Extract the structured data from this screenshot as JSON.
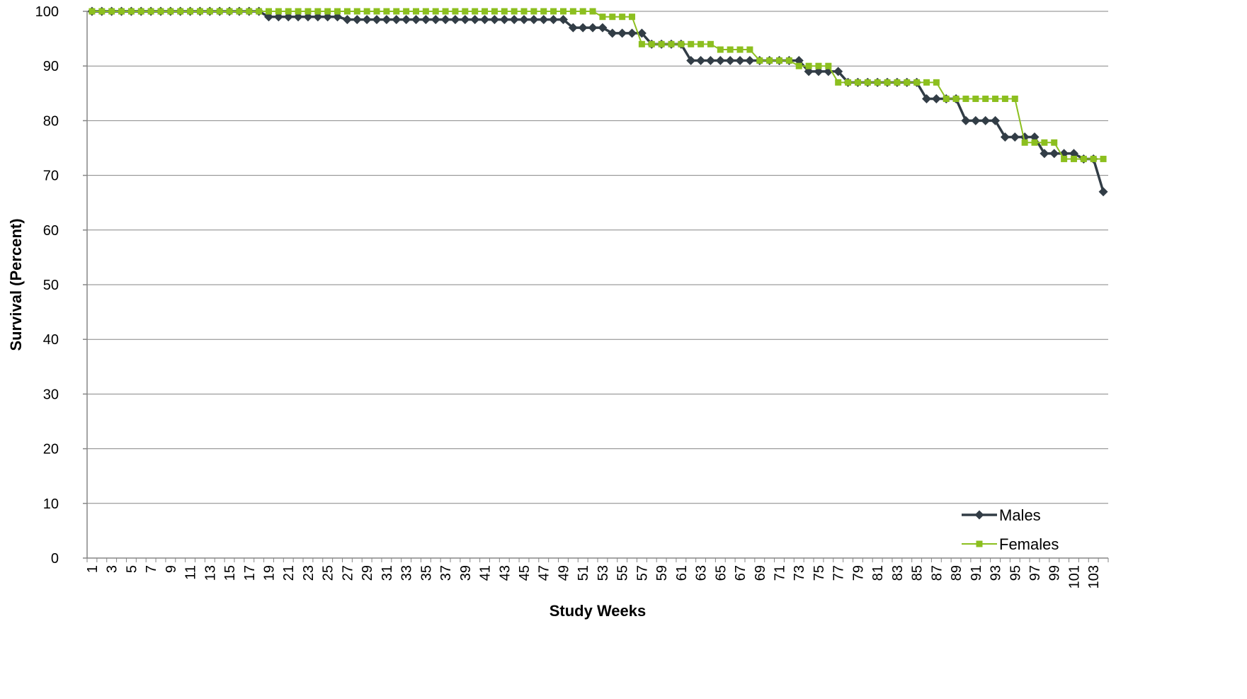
{
  "chart_data": {
    "type": "line",
    "xlabel": "Study Weeks",
    "ylabel": "Survival (Percent)",
    "ylim": [
      0,
      100
    ],
    "yticks": [
      0,
      10,
      20,
      30,
      40,
      50,
      60,
      70,
      80,
      90,
      100
    ],
    "x_tick_step": 2,
    "grid": "horizontal",
    "legend_position": "bottom-right",
    "x": [
      1,
      2,
      3,
      4,
      5,
      6,
      7,
      8,
      9,
      10,
      11,
      12,
      13,
      14,
      15,
      16,
      17,
      18,
      19,
      20,
      21,
      22,
      23,
      24,
      25,
      26,
      27,
      28,
      29,
      30,
      31,
      32,
      33,
      34,
      35,
      36,
      37,
      38,
      39,
      40,
      41,
      42,
      43,
      44,
      45,
      46,
      47,
      48,
      49,
      50,
      51,
      52,
      53,
      54,
      55,
      56,
      57,
      58,
      59,
      60,
      61,
      62,
      63,
      64,
      65,
      66,
      67,
      68,
      69,
      70,
      71,
      72,
      73,
      74,
      75,
      76,
      77,
      78,
      79,
      80,
      81,
      82,
      83,
      84,
      85,
      86,
      87,
      88,
      89,
      90,
      91,
      92,
      93,
      94,
      95,
      96,
      97,
      98,
      99,
      100,
      101,
      102,
      103,
      104
    ],
    "series": [
      {
        "name": "Males",
        "color": "#323d46",
        "marker": "diamond",
        "values": [
          100,
          100,
          100,
          100,
          100,
          100,
          100,
          100,
          100,
          100,
          100,
          100,
          100,
          100,
          100,
          100,
          100,
          100,
          99,
          99,
          99,
          99,
          99,
          99,
          99,
          99,
          98.5,
          98.5,
          98.5,
          98.5,
          98.5,
          98.5,
          98.5,
          98.5,
          98.5,
          98.5,
          98.5,
          98.5,
          98.5,
          98.5,
          98.5,
          98.5,
          98.5,
          98.5,
          98.5,
          98.5,
          98.5,
          98.5,
          98.5,
          97,
          97,
          97,
          97,
          96,
          96,
          96,
          96,
          94,
          94,
          94,
          94,
          91,
          91,
          91,
          91,
          91,
          91,
          91,
          91,
          91,
          91,
          91,
          91,
          89,
          89,
          89,
          89,
          87,
          87,
          87,
          87,
          87,
          87,
          87,
          87,
          84,
          84,
          84,
          84,
          80,
          80,
          80,
          80,
          77,
          77,
          77,
          77,
          74,
          74,
          74,
          74,
          73,
          73,
          67
        ]
      },
      {
        "name": "Females",
        "color": "#8cbf1f",
        "marker": "square",
        "values": [
          100,
          100,
          100,
          100,
          100,
          100,
          100,
          100,
          100,
          100,
          100,
          100,
          100,
          100,
          100,
          100,
          100,
          100,
          100,
          100,
          100,
          100,
          100,
          100,
          100,
          100,
          100,
          100,
          100,
          100,
          100,
          100,
          100,
          100,
          100,
          100,
          100,
          100,
          100,
          100,
          100,
          100,
          100,
          100,
          100,
          100,
          100,
          100,
          100,
          100,
          100,
          100,
          99,
          99,
          99,
          99,
          94,
          94,
          94,
          94,
          94,
          94,
          94,
          94,
          93,
          93,
          93,
          93,
          91,
          91,
          91,
          91,
          90,
          90,
          90,
          90,
          87,
          87,
          87,
          87,
          87,
          87,
          87,
          87,
          87,
          87,
          87,
          84,
          84,
          84,
          84,
          84,
          84,
          84,
          84,
          76,
          76,
          76,
          76,
          73,
          73,
          73,
          73,
          73
        ]
      }
    ]
  }
}
